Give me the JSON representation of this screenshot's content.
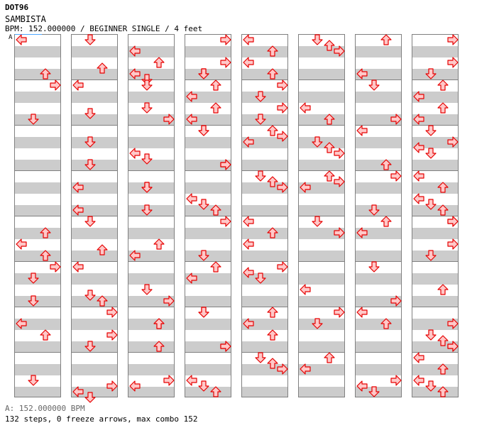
{
  "header": {
    "id": "DOT96",
    "title": "SAMBISTA",
    "info": "BPM: 152.000000 / BEGINNER SINGLE / 4 feet"
  },
  "section_marker": {
    "label": "A",
    "bpm_color": "#4da6ff"
  },
  "footer": {
    "bpm_line": "A: 152.000000 BPM",
    "stats_line": "132 steps, 0 freeze arrows, max combo 152"
  },
  "chart_data": {
    "type": "step_chart",
    "mode": "BEGINNER SINGLE",
    "bpm": 152,
    "difficulty_feet": 4,
    "lanes": [
      "left",
      "down",
      "up",
      "right"
    ],
    "beats_per_measure": 4,
    "measures_per_column": 8,
    "steps": 132,
    "freeze_arrows": 0,
    "max_combo": 152,
    "colors": {
      "arrow_fill": "#ffc8c8",
      "arrow_stroke": "#e60000",
      "stripe": "#cccccc",
      "border": "#808080"
    },
    "notes": [
      [
        0,
        0,
        0
      ],
      [
        0,
        0,
        3
      ],
      [
        0,
        1,
        0
      ],
      [
        0,
        1,
        3
      ],
      [
        0,
        4,
        1
      ],
      [
        0,
        5,
        1
      ],
      [
        0,
        4,
        2
      ],
      [
        0,
        4,
        3
      ],
      [
        0,
        5,
        0
      ],
      [
        0,
        5,
        3
      ],
      [
        0,
        6,
        2
      ],
      [
        0,
        6,
        1
      ],
      [
        0,
        7,
        2
      ],
      [
        1,
        0,
        0
      ],
      [
        1,
        0,
        2.5
      ],
      [
        1,
        1,
        0
      ],
      [
        1,
        1,
        2.5
      ],
      [
        1,
        2,
        1
      ],
      [
        1,
        2,
        3
      ],
      [
        1,
        3,
        1
      ],
      [
        1,
        3,
        3
      ],
      [
        1,
        4,
        0
      ],
      [
        1,
        4,
        2.5
      ],
      [
        1,
        5,
        0
      ],
      [
        1,
        5,
        2.5
      ],
      [
        1,
        5,
        3
      ],
      [
        1,
        6,
        2
      ],
      [
        1,
        6,
        0
      ],
      [
        1,
        6,
        3
      ],
      [
        1,
        7,
        2.5
      ],
      [
        1,
        7,
        3
      ],
      [
        1,
        7,
        3.5
      ],
      [
        2,
        0,
        3
      ],
      [
        2,
        0,
        2
      ],
      [
        2,
        0,
        1
      ],
      [
        2,
        0,
        3.5
      ],
      [
        2,
        1,
        0
      ],
      [
        2,
        1,
        3
      ],
      [
        2,
        1,
        2
      ],
      [
        2,
        2,
        2
      ],
      [
        2,
        2,
        2.5
      ],
      [
        2,
        3,
        1
      ],
      [
        2,
        3,
        3
      ],
      [
        2,
        3,
        1
      ],
      [
        2,
        4,
        3
      ],
      [
        2,
        4,
        2
      ],
      [
        2,
        5,
        2
      ],
      [
        2,
        5,
        3
      ],
      [
        2,
        6,
        1
      ],
      [
        2,
        6,
        3
      ],
      [
        2,
        6,
        1
      ],
      [
        2,
        7,
        2
      ],
      [
        2,
        7,
        2.5
      ],
      [
        3,
        0,
        0
      ],
      [
        3,
        0,
        3
      ],
      [
        3,
        0,
        2
      ],
      [
        3,
        0,
        3
      ],
      [
        3,
        1,
        0
      ],
      [
        3,
        1,
        1
      ],
      [
        3,
        1,
        2
      ],
      [
        3,
        1,
        3
      ],
      [
        3,
        2,
        0
      ],
      [
        3,
        2,
        3
      ],
      [
        3,
        2,
        0
      ],
      [
        3,
        2,
        3
      ],
      [
        3,
        3,
        2
      ],
      [
        3,
        3,
        2.5
      ],
      [
        3,
        3,
        3
      ],
      [
        3,
        4,
        0
      ],
      [
        3,
        4,
        3
      ],
      [
        3,
        5,
        0
      ],
      [
        3,
        5,
        1
      ],
      [
        3,
        6,
        0
      ],
      [
        3,
        6,
        3
      ],
      [
        3,
        6,
        0
      ],
      [
        3,
        6,
        3
      ],
      [
        3,
        7,
        2
      ],
      [
        3,
        7,
        2.5
      ],
      [
        3,
        7,
        3
      ],
      [
        4,
        0,
        0
      ],
      [
        4,
        0,
        1
      ],
      [
        4,
        0,
        3
      ],
      [
        4,
        0,
        2
      ],
      [
        4,
        1,
        0
      ],
      [
        4,
        1,
        1
      ],
      [
        4,
        1,
        2
      ],
      [
        4,
        1,
        3
      ],
      [
        4,
        2,
        0
      ],
      [
        4,
        2,
        0.5
      ],
      [
        4,
        2,
        1
      ],
      [
        4,
        3,
        0
      ],
      [
        4,
        3,
        0.5
      ],
      [
        4,
        3,
        1
      ],
      [
        4,
        4,
        0
      ],
      [
        4,
        4,
        1
      ],
      [
        4,
        4,
        2
      ],
      [
        4,
        5,
        0
      ],
      [
        4,
        5,
        0.5
      ],
      [
        4,
        5,
        1
      ],
      [
        4,
        6,
        0
      ],
      [
        4,
        6,
        1
      ],
      [
        4,
        6,
        2
      ],
      [
        4,
        7,
        0
      ],
      [
        4,
        7,
        0.5
      ],
      [
        4,
        7,
        1
      ],
      [
        5,
        0,
        0
      ],
      [
        5,
        0,
        0.5
      ],
      [
        5,
        0,
        1
      ],
      [
        5,
        1,
        2
      ],
      [
        5,
        1,
        3
      ],
      [
        5,
        2,
        1
      ],
      [
        5,
        2,
        1.5
      ],
      [
        5,
        2,
        2
      ],
      [
        5,
        3,
        0
      ],
      [
        5,
        3,
        0.5
      ],
      [
        5,
        3,
        1
      ],
      [
        5,
        4,
        0
      ],
      [
        5,
        4,
        1
      ],
      [
        5,
        5,
        2
      ],
      [
        5,
        6,
        0
      ],
      [
        5,
        6,
        1
      ],
      [
        5,
        7,
        0
      ],
      [
        5,
        7,
        1
      ],
      [
        6,
        0,
        0
      ],
      [
        6,
        0,
        3
      ],
      [
        6,
        1,
        0
      ],
      [
        6,
        1,
        3
      ],
      [
        6,
        2,
        0
      ],
      [
        6,
        2,
        3
      ],
      [
        6,
        3,
        0
      ],
      [
        6,
        3,
        3
      ],
      [
        6,
        4,
        0
      ],
      [
        6,
        4,
        1
      ],
      [
        6,
        5,
        0
      ],
      [
        6,
        5,
        3
      ],
      [
        6,
        6,
        0
      ],
      [
        6,
        6,
        1
      ],
      [
        6,
        7,
        2
      ],
      [
        6,
        7,
        2.5
      ],
      [
        6,
        7,
        3
      ],
      [
        7,
        0,
        0
      ],
      [
        7,
        0,
        2
      ],
      [
        7,
        0,
        3
      ],
      [
        7,
        1,
        0
      ],
      [
        7,
        1,
        1
      ],
      [
        7,
        1,
        2
      ],
      [
        7,
        1,
        3
      ],
      [
        7,
        2,
        0
      ],
      [
        7,
        2,
        1
      ],
      [
        7,
        2,
        1.5
      ],
      [
        7,
        2,
        2
      ],
      [
        7,
        3,
        0
      ],
      [
        7,
        3,
        1
      ],
      [
        7,
        3,
        2
      ],
      [
        7,
        3,
        2.5
      ],
      [
        7,
        3,
        3
      ],
      [
        7,
        4,
        0
      ],
      [
        7,
        4,
        3
      ],
      [
        7,
        4,
        0
      ],
      [
        7,
        4,
        2
      ],
      [
        7,
        5,
        2
      ],
      [
        7,
        6,
        1
      ],
      [
        7,
        6,
        2
      ],
      [
        7,
        6,
        3
      ],
      [
        7,
        6,
        2.5
      ],
      [
        7,
        6,
        3
      ],
      [
        7,
        7,
        0
      ],
      [
        7,
        7,
        1
      ],
      [
        7,
        7,
        2
      ],
      [
        7,
        7,
        2.5
      ],
      [
        7,
        7,
        3
      ]
    ]
  }
}
